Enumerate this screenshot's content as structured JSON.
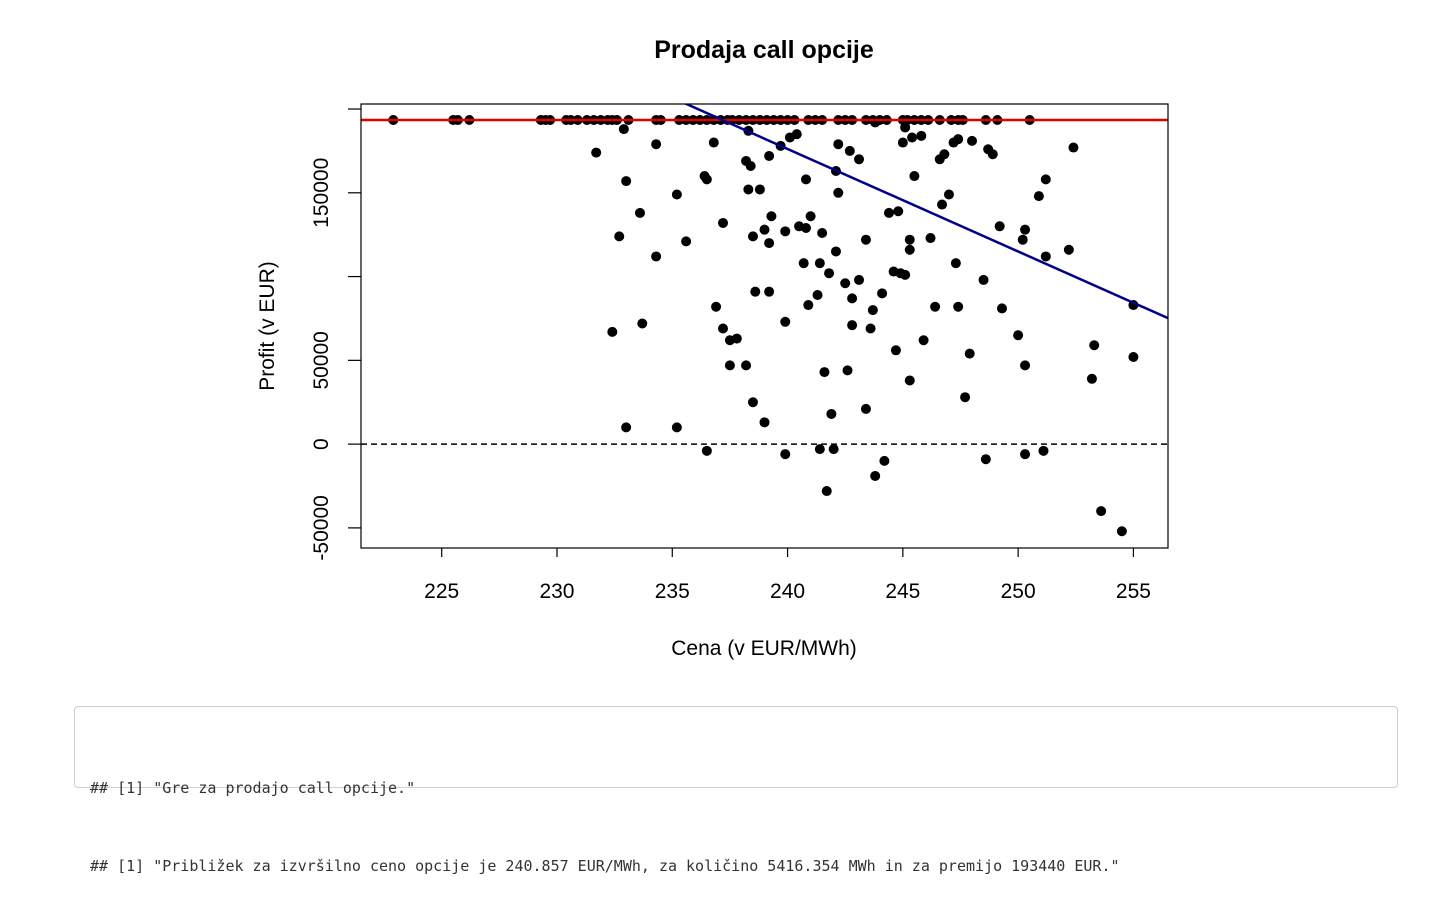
{
  "chart_data": {
    "type": "scatter",
    "title": "Prodaja call opcije",
    "xlabel": "Cena (v EUR/MWh)",
    "ylabel": "Profit (v EUR)",
    "xlim": [
      221.5,
      256.5
    ],
    "ylim": [
      -62000,
      203000
    ],
    "x_ticks": [
      225,
      230,
      235,
      240,
      245,
      250,
      255
    ],
    "y_ticks": [
      -50000,
      0,
      50000,
      150000
    ],
    "y_tick_labels": [
      "-50000",
      "0",
      "50000",
      "150000"
    ],
    "grid": false,
    "legend": "none",
    "reference_lines": [
      {
        "kind": "horizontal",
        "y": 193440,
        "color": "#e00000",
        "style": "solid"
      },
      {
        "kind": "horizontal",
        "y": 0,
        "color": "#000000",
        "style": "dashed"
      },
      {
        "kind": "regression",
        "points": [
          [
            234.8,
            208000
          ],
          [
            256.5,
            75200
          ]
        ],
        "color": "#00008b",
        "style": "solid"
      }
    ],
    "points": [
      [
        222.9,
        193440
      ],
      [
        225.5,
        193440
      ],
      [
        225.7,
        193440
      ],
      [
        226.2,
        193440
      ],
      [
        229.3,
        193440
      ],
      [
        229.5,
        193440
      ],
      [
        229.7,
        193440
      ],
      [
        230.4,
        193440
      ],
      [
        230.6,
        193440
      ],
      [
        230.9,
        193440
      ],
      [
        231.3,
        193440
      ],
      [
        231.6,
        193440
      ],
      [
        231.9,
        193440
      ],
      [
        232.2,
        193440
      ],
      [
        232.4,
        193440
      ],
      [
        232.6,
        193440
      ],
      [
        233.1,
        193440
      ],
      [
        234.3,
        193440
      ],
      [
        234.5,
        193440
      ],
      [
        235.3,
        193440
      ],
      [
        235.6,
        193440
      ],
      [
        235.9,
        193440
      ],
      [
        236.2,
        193440
      ],
      [
        236.5,
        193440
      ],
      [
        236.8,
        193440
      ],
      [
        237.1,
        193440
      ],
      [
        237.4,
        193440
      ],
      [
        237.6,
        193440
      ],
      [
        237.9,
        193440
      ],
      [
        238.2,
        193440
      ],
      [
        238.5,
        193440
      ],
      [
        238.8,
        193440
      ],
      [
        239.1,
        193440
      ],
      [
        239.4,
        193440
      ],
      [
        239.7,
        193440
      ],
      [
        240.0,
        193440
      ],
      [
        240.3,
        193440
      ],
      [
        240.9,
        193440
      ],
      [
        241.2,
        193440
      ],
      [
        241.5,
        193440
      ],
      [
        242.2,
        193440
      ],
      [
        242.5,
        193440
      ],
      [
        242.8,
        193440
      ],
      [
        243.4,
        193440
      ],
      [
        243.7,
        193440
      ],
      [
        244.0,
        193440
      ],
      [
        244.3,
        193440
      ],
      [
        245.0,
        193440
      ],
      [
        245.2,
        193440
      ],
      [
        245.5,
        193440
      ],
      [
        245.8,
        193440
      ],
      [
        246.1,
        193440
      ],
      [
        246.6,
        193440
      ],
      [
        247.1,
        193440
      ],
      [
        247.4,
        193440
      ],
      [
        247.6,
        193440
      ],
      [
        248.6,
        193440
      ],
      [
        249.1,
        193440
      ],
      [
        250.5,
        193440
      ],
      [
        232.9,
        188000
      ],
      [
        234.3,
        179000
      ],
      [
        231.7,
        174000
      ],
      [
        236.8,
        180000
      ],
      [
        238.3,
        187000
      ],
      [
        239.2,
        172000
      ],
      [
        239.7,
        178000
      ],
      [
        240.1,
        183000
      ],
      [
        240.4,
        185000
      ],
      [
        242.2,
        179000
      ],
      [
        242.7,
        175000
      ],
      [
        243.1,
        170000
      ],
      [
        243.8,
        192000
      ],
      [
        245.1,
        189000
      ],
      [
        245.4,
        183000
      ],
      [
        245.8,
        184000
      ],
      [
        245.0,
        180000
      ],
      [
        246.6,
        170000
      ],
      [
        246.8,
        173000
      ],
      [
        247.2,
        180000
      ],
      [
        247.4,
        182000
      ],
      [
        248.0,
        181000
      ],
      [
        248.7,
        176000
      ],
      [
        248.9,
        173000
      ],
      [
        252.4,
        177000
      ],
      [
        233.0,
        157000
      ],
      [
        236.4,
        160000
      ],
      [
        236.5,
        158000
      ],
      [
        238.2,
        169000
      ],
      [
        238.4,
        166000
      ],
      [
        238.3,
        152000
      ],
      [
        238.8,
        152000
      ],
      [
        240.8,
        158000
      ],
      [
        242.1,
        163000
      ],
      [
        242.2,
        150000
      ],
      [
        245.5,
        160000
      ],
      [
        246.7,
        143000
      ],
      [
        247.0,
        149000
      ],
      [
        250.9,
        148000
      ],
      [
        251.2,
        158000
      ],
      [
        233.6,
        138000
      ],
      [
        235.2,
        149000
      ],
      [
        232.7,
        124000
      ],
      [
        235.6,
        121000
      ],
      [
        237.2,
        132000
      ],
      [
        238.5,
        124000
      ],
      [
        239.0,
        128000
      ],
      [
        239.3,
        136000
      ],
      [
        239.2,
        120000
      ],
      [
        239.9,
        127000
      ],
      [
        240.5,
        130000
      ],
      [
        240.8,
        129000
      ],
      [
        241.0,
        136000
      ],
      [
        241.5,
        126000
      ],
      [
        242.1,
        115000
      ],
      [
        243.4,
        122000
      ],
      [
        244.4,
        138000
      ],
      [
        244.8,
        139000
      ],
      [
        245.3,
        116000
      ],
      [
        245.3,
        122000
      ],
      [
        246.2,
        123000
      ],
      [
        249.2,
        130000
      ],
      [
        250.2,
        122000
      ],
      [
        250.3,
        128000
      ],
      [
        251.2,
        112000
      ],
      [
        252.2,
        116000
      ],
      [
        234.3,
        112000
      ],
      [
        240.7,
        108000
      ],
      [
        241.4,
        108000
      ],
      [
        241.8,
        102000
      ],
      [
        243.1,
        98000
      ],
      [
        244.6,
        103000
      ],
      [
        244.9,
        102000
      ],
      [
        245.1,
        101000
      ],
      [
        247.3,
        108000
      ],
      [
        248.5,
        98000
      ],
      [
        232.4,
        67000
      ],
      [
        233.7,
        72000
      ],
      [
        236.9,
        82000
      ],
      [
        237.2,
        69000
      ],
      [
        237.5,
        62000
      ],
      [
        237.8,
        63000
      ],
      [
        238.6,
        91000
      ],
      [
        239.2,
        91000
      ],
      [
        239.9,
        73000
      ],
      [
        240.9,
        83000
      ],
      [
        241.3,
        89000
      ],
      [
        242.5,
        96000
      ],
      [
        242.8,
        87000
      ],
      [
        242.8,
        71000
      ],
      [
        243.6,
        69000
      ],
      [
        243.7,
        80000
      ],
      [
        244.1,
        90000
      ],
      [
        246.4,
        82000
      ],
      [
        247.4,
        82000
      ],
      [
        249.3,
        81000
      ],
      [
        250.0,
        65000
      ],
      [
        255.0,
        83000
      ],
      [
        237.5,
        47000
      ],
      [
        238.2,
        47000
      ],
      [
        241.6,
        43000
      ],
      [
        242.6,
        44000
      ],
      [
        244.7,
        56000
      ],
      [
        245.3,
        38000
      ],
      [
        245.9,
        62000
      ],
      [
        247.9,
        54000
      ],
      [
        250.3,
        47000
      ],
      [
        253.2,
        39000
      ],
      [
        253.3,
        59000
      ],
      [
        255.0,
        52000
      ],
      [
        233.0,
        10000
      ],
      [
        235.2,
        10000
      ],
      [
        238.5,
        25000
      ],
      [
        239.0,
        13000
      ],
      [
        241.9,
        18000
      ],
      [
        243.4,
        21000
      ],
      [
        247.7,
        28000
      ],
      [
        236.5,
        -4000
      ],
      [
        239.9,
        -6000
      ],
      [
        241.4,
        -3000
      ],
      [
        242.0,
        -3000
      ],
      [
        243.8,
        -19000
      ],
      [
        244.2,
        -10000
      ],
      [
        248.6,
        -9000
      ],
      [
        250.3,
        -6000
      ],
      [
        251.1,
        -4000
      ],
      [
        241.7,
        -28000
      ],
      [
        253.6,
        -40000
      ],
      [
        254.5,
        -52000
      ]
    ]
  },
  "output": {
    "lines": [
      "## [1] \"Gre za prodajo call opcije.\"",
      "## [1] \"Približek za izvršilno ceno opcije je 240.857 EUR/MWh, za količino 5416.354 MWh in za premijo 193440 EUR.\""
    ]
  }
}
